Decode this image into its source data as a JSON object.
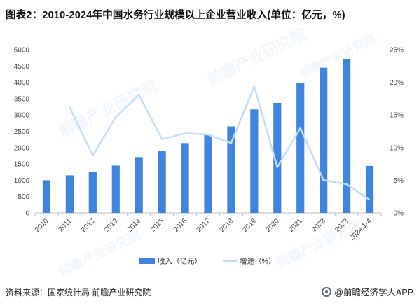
{
  "title": "图表2：2010-2024年中国水务行业规模以上企业营业收入(单位：亿元，%)",
  "source": "资料来源：国家统计局 前瞻产业研究院",
  "brand": "@前瞻经济学人APP",
  "watermark": "前瞻产业研究院",
  "colors": {
    "bar": "#3f85e0",
    "line": "#c3def7",
    "axis": "#bfbfbf"
  },
  "chart_data": {
    "type": "bar+line",
    "title": "图表2：2010-2024年中国水务行业规模以上企业营业收入(单位：亿元，%)",
    "categories": [
      "2010",
      "2011",
      "2012",
      "2013",
      "2014",
      "2015",
      "2016",
      "2017",
      "2018",
      "2019",
      "2020",
      "2021",
      "2022",
      "2023",
      "2024.1-4"
    ],
    "series": [
      {
        "name": "收入（亿元）",
        "type": "bar",
        "axis": "left",
        "values": [
          1000,
          1150,
          1260,
          1450,
          1710,
          1900,
          2140,
          2380,
          2650,
          3170,
          3370,
          3980,
          4450,
          4710,
          1440
        ]
      },
      {
        "name": "增速（%）",
        "type": "line",
        "axis": "right",
        "values": [
          null,
          16.2,
          8.8,
          14.7,
          18.1,
          11.3,
          12.2,
          12.0,
          10.7,
          19.4,
          7.0,
          13.0,
          5.0,
          4.4,
          2.0
        ]
      }
    ],
    "y_left": {
      "ylim": [
        0,
        5000
      ],
      "ticks": [
        "0",
        "500",
        "1000",
        "1500",
        "2000",
        "2500",
        "3000",
        "3500",
        "4000",
        "4500",
        "5000"
      ]
    },
    "y_right": {
      "ylim": [
        0,
        25
      ],
      "ticks": [
        "0%",
        "5%",
        "10%",
        "15%",
        "20%",
        "25%"
      ]
    },
    "legend": {
      "placement": "bottom-center",
      "items": [
        "收入（亿元）",
        "增速（%）"
      ]
    },
    "grid": false
  }
}
